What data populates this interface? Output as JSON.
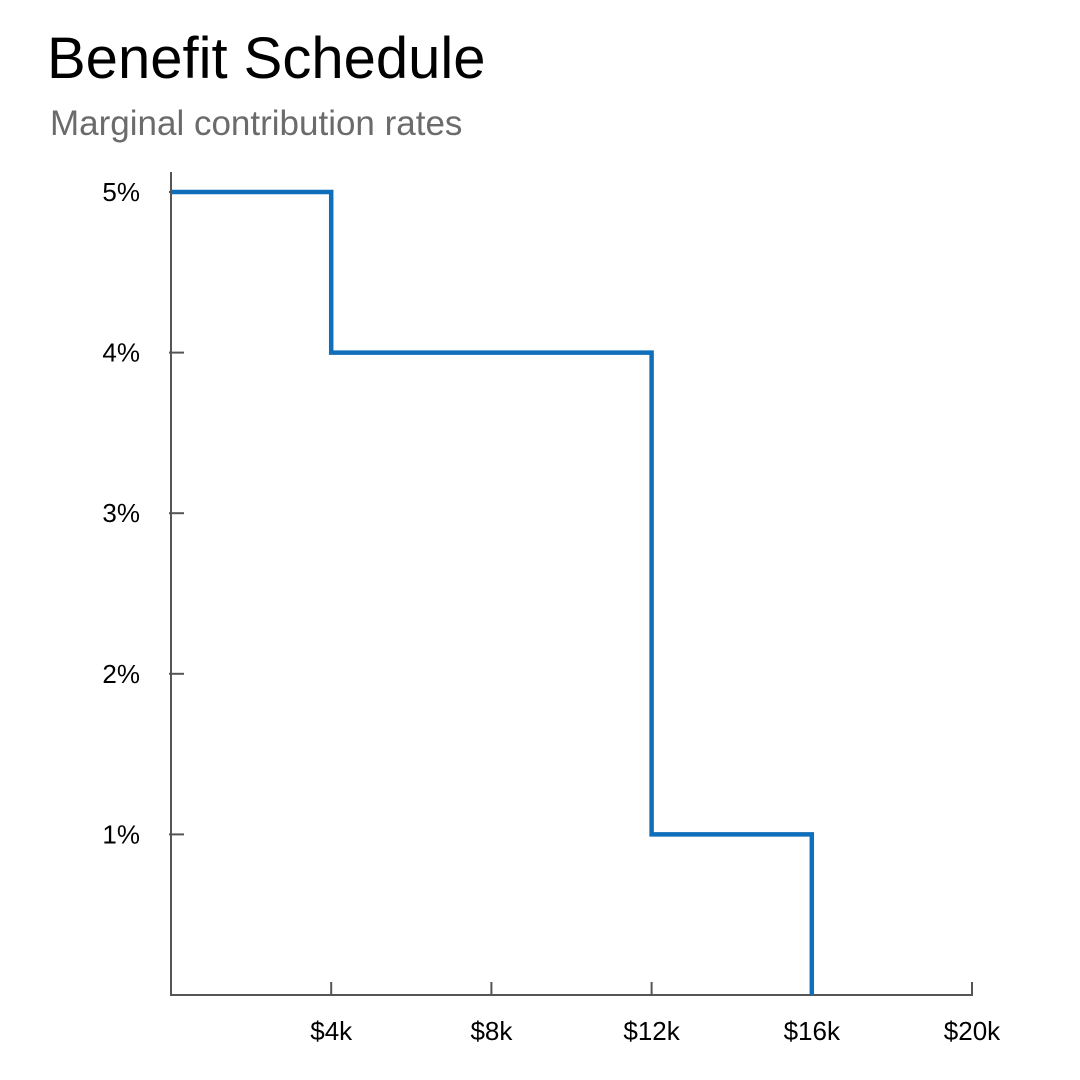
{
  "title": "Benefit Schedule",
  "subtitle": "Marginal contribution rates",
  "chart_data": {
    "type": "line",
    "step": true,
    "title": "Benefit Schedule",
    "subtitle": "Marginal contribution rates",
    "xlabel": "",
    "ylabel": "",
    "xlim": [
      0,
      20000
    ],
    "ylim": [
      0,
      5
    ],
    "x_ticks": [
      4000,
      8000,
      12000,
      16000,
      20000
    ],
    "x_tick_labels": [
      "$4k",
      "$8k",
      "$12k",
      "$16k",
      "$20k"
    ],
    "y_ticks": [
      1,
      2,
      3,
      4,
      5
    ],
    "y_tick_labels": [
      "1%",
      "2%",
      "3%",
      "4%",
      "5%"
    ],
    "grid": false,
    "series": [
      {
        "points": [
          {
            "x": 0,
            "y": 5
          },
          {
            "x": 4000,
            "y": 5
          },
          {
            "x": 4000,
            "y": 4
          },
          {
            "x": 12000,
            "y": 4
          },
          {
            "x": 12000,
            "y": 1
          },
          {
            "x": 16000,
            "y": 1
          },
          {
            "x": 16000,
            "y": 0
          }
        ]
      }
    ],
    "colors": {
      "line": "#0f6fba",
      "axis": "#555555"
    }
  }
}
